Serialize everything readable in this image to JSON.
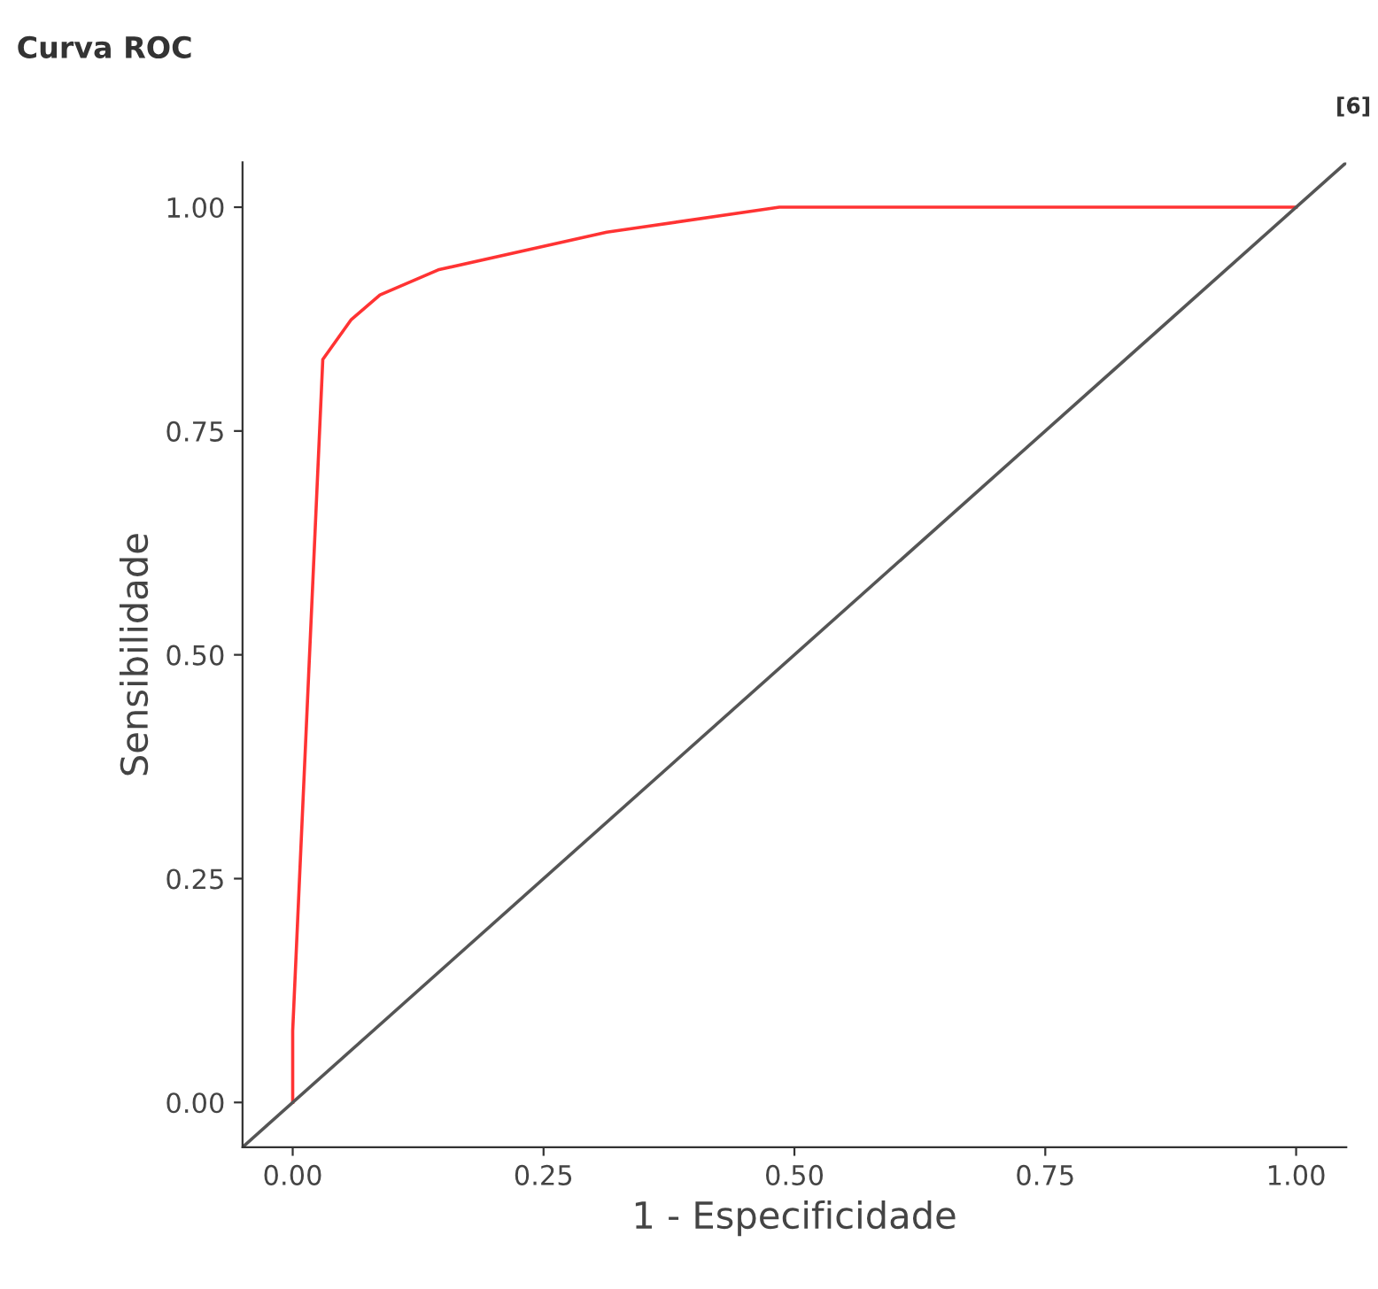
{
  "chart_data": {
    "type": "line",
    "title": "Curva ROC",
    "xlabel": "1 - Especificidade",
    "ylabel": "Sensibilidade",
    "annotations": [
      "[6]"
    ],
    "xlim": [
      -0.05,
      1.05
    ],
    "ylim": [
      -0.05,
      1.05
    ],
    "xticks": [
      {
        "value": 0,
        "label": "0.00"
      },
      {
        "value": 0.25,
        "label": "0.25"
      },
      {
        "value": 0.5,
        "label": "0.50"
      },
      {
        "value": 0.75,
        "label": "0.75"
      },
      {
        "value": 1,
        "label": "1.00"
      }
    ],
    "yticks": [
      {
        "value": 0,
        "label": "0.00"
      },
      {
        "value": 0.25,
        "label": "0.25"
      },
      {
        "value": 0.5,
        "label": "0.50"
      },
      {
        "value": 0.75,
        "label": "0.75"
      },
      {
        "value": 1,
        "label": "1.00"
      }
    ],
    "grid": false,
    "legend": false,
    "series": [
      {
        "color": "#ff3333",
        "x": [
          0,
          0,
          0.03,
          0.058,
          0.087,
          0.145,
          0.313,
          0.485,
          1.0
        ],
        "values": [
          0,
          0.08,
          0.83,
          0.874,
          0.902,
          0.93,
          0.972,
          1.0,
          1.0
        ]
      },
      {
        "color": "#555555",
        "x": [
          -0.05,
          1.05
        ],
        "values": [
          -0.05,
          1.05
        ]
      }
    ]
  }
}
